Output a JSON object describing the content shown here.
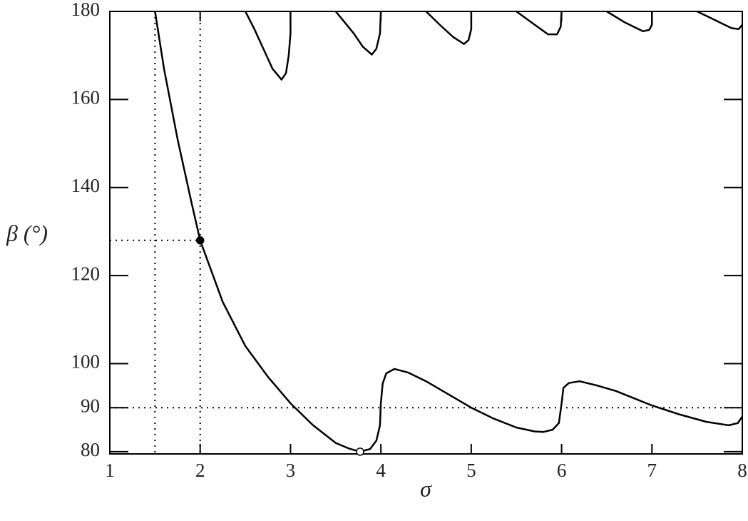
{
  "chart_data": {
    "type": "line",
    "xlabel": "σ",
    "ylabel": "β (°)",
    "xlim": [
      1,
      8
    ],
    "ylim": [
      79.5,
      180
    ],
    "xticks": [
      1,
      2,
      3,
      4,
      5,
      6,
      7,
      8
    ],
    "yticks": [
      80,
      90,
      100,
      120,
      140,
      160,
      180
    ],
    "series": [
      {
        "color": "#000000",
        "x": [
          1.5,
          1.6,
          1.75,
          1.9,
          2,
          2.25,
          2.5,
          2.75,
          3,
          3.25,
          3.5,
          3.65,
          3.77,
          3.88,
          3.95,
          3.99,
          4.0,
          4.02,
          4.06,
          4.15,
          4.3,
          4.5,
          4.75,
          5,
          5.25,
          5.5,
          5.7,
          5.8,
          5.9,
          5.97,
          6.0,
          6.02,
          6.08,
          6.2,
          6.4,
          6.6,
          7,
          7.3,
          7.6,
          7.85,
          7.95,
          8
        ],
        "values": [
          180,
          167,
          151,
          137,
          128,
          114,
          104,
          97,
          91,
          86,
          82,
          80.7,
          80,
          80.6,
          82.5,
          86,
          91,
          95.5,
          97.8,
          98.8,
          98,
          96,
          93,
          90,
          87.5,
          85.5,
          84.6,
          84.5,
          85,
          86.5,
          91,
          94.5,
          95.6,
          96,
          95,
          93.8,
          90.5,
          88.5,
          86.8,
          86,
          86.5,
          88
        ]
      },
      {
        "color": "#000000",
        "x": [
          2.5,
          2.6,
          2.7,
          2.8,
          2.9,
          2.95,
          2.98,
          3,
          3.0
        ],
        "values": [
          180,
          176,
          171.5,
          167,
          164.5,
          166,
          170,
          175,
          180
        ]
      },
      {
        "color": "#000000",
        "x": [
          3.5,
          3.6,
          3.7,
          3.8,
          3.9,
          3.95,
          3.99,
          4.0
        ],
        "values": [
          180,
          177.5,
          175,
          172,
          170.2,
          171.5,
          175,
          180
        ]
      },
      {
        "color": "#000000",
        "x": [
          4.5,
          4.65,
          4.8,
          4.92,
          4.97,
          5.0,
          5.0
        ],
        "values": [
          180,
          177,
          174.2,
          172.6,
          173.5,
          176,
          180
        ]
      },
      {
        "color": "#000000",
        "x": [
          5.5,
          5.7,
          5.85,
          5.95,
          5.99,
          6.0
        ],
        "values": [
          180,
          177,
          174.8,
          174.8,
          176.5,
          180
        ]
      },
      {
        "color": "#000000",
        "x": [
          6.5,
          6.7,
          6.9,
          6.97,
          7.0,
          7.0
        ],
        "values": [
          180,
          177.5,
          175.5,
          175.8,
          177,
          180
        ]
      },
      {
        "color": "#000000",
        "x": [
          7.5,
          7.7,
          7.88,
          7.96,
          8.0
        ],
        "values": [
          180,
          178,
          176.2,
          176,
          177
        ]
      }
    ],
    "vlines": [
      1.5,
      2
    ],
    "hlines": [
      {
        "value": 128,
        "until": 2
      },
      {
        "value": 90
      }
    ],
    "points": [
      {
        "x": 2,
        "y": 128,
        "filled": true
      },
      {
        "x": 3.77,
        "y": 80,
        "filled": false
      }
    ]
  }
}
